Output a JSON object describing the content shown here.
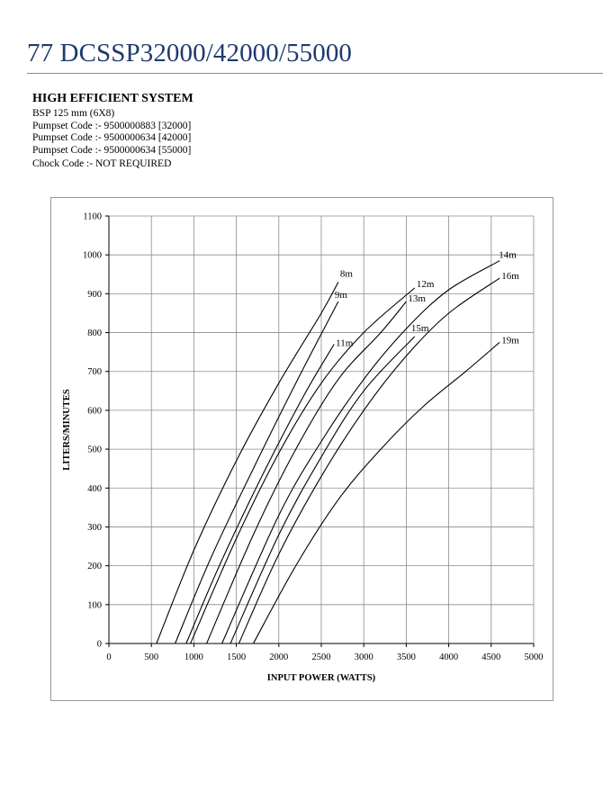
{
  "header": {
    "title": "77 DCSSP32000/42000/55000"
  },
  "specs": {
    "heading": "HIGH EFFICIENT SYSTEM",
    "lines": [
      "BSP 125 mm (6X8)",
      "Pumpset Code :- 9500000883 [32000]",
      "Pumpset Code :- 9500000634 [42000]",
      "Pumpset Code :- 9500000634 [55000]",
      "Chock Code :-  NOT REQUIRED"
    ]
  },
  "chart_data": {
    "type": "line",
    "title": "",
    "xlabel": "INPUT POWER (WATTS)",
    "ylabel": "LITERS/MINUTES",
    "xlim": [
      0,
      5000
    ],
    "ylim": [
      0,
      1100
    ],
    "xticks": [
      0,
      500,
      1000,
      1500,
      2000,
      2500,
      3000,
      3500,
      4000,
      4500,
      5000
    ],
    "yticks": [
      0,
      100,
      200,
      300,
      400,
      500,
      600,
      700,
      800,
      900,
      1000,
      1100
    ],
    "grid": true,
    "legend": "none",
    "line_color": "#000000",
    "grid_color": "#8c8c8c",
    "series": [
      {
        "name": "8m",
        "x": [
          560,
          1000,
          1500,
          2000,
          2500,
          2700
        ],
        "y": [
          0,
          240,
          470,
          670,
          850,
          930
        ]
      },
      {
        "name": "9m",
        "x": [
          780,
          1200,
          1700,
          2200,
          2700
        ],
        "y": [
          0,
          220,
          450,
          670,
          880
        ]
      },
      {
        "name": "11m",
        "x": [
          910,
          1300,
          1800,
          2300,
          2650
        ],
        "y": [
          0,
          200,
          430,
          640,
          770
        ]
      },
      {
        "name": "12m",
        "x": [
          960,
          1500,
          2000,
          2500,
          3000,
          3600
        ],
        "y": [
          0,
          270,
          490,
          670,
          800,
          915
        ]
      },
      {
        "name": "13m",
        "x": [
          1150,
          1700,
          2200,
          2700,
          3200,
          3500
        ],
        "y": [
          0,
          280,
          500,
          680,
          800,
          880
        ]
      },
      {
        "name": "14m",
        "x": [
          1330,
          2000,
          2500,
          3000,
          3500,
          4000,
          4600
        ],
        "y": [
          0,
          330,
          520,
          680,
          810,
          910,
          985
        ]
      },
      {
        "name": "15m",
        "x": [
          1430,
          2000,
          2500,
          3000,
          3600
        ],
        "y": [
          0,
          280,
          480,
          650,
          790
        ]
      },
      {
        "name": "16m",
        "x": [
          1530,
          2000,
          2500,
          3000,
          3500,
          4000,
          4600
        ],
        "y": [
          0,
          230,
          430,
          600,
          740,
          850,
          940
        ]
      },
      {
        "name": "19m",
        "x": [
          1700,
          2200,
          2700,
          3200,
          3700,
          4200,
          4600
        ],
        "y": [
          0,
          200,
          370,
          500,
          610,
          700,
          775
        ]
      }
    ]
  }
}
